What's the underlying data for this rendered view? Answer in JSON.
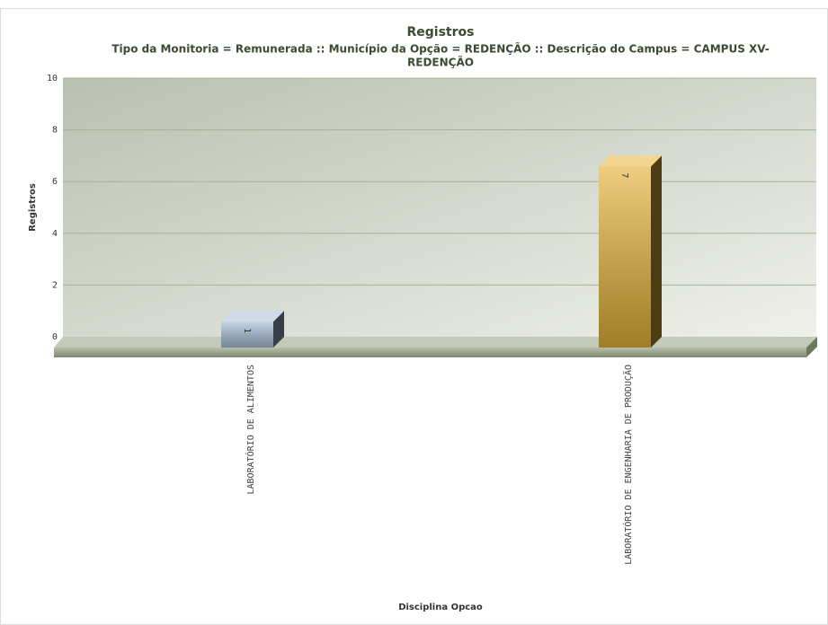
{
  "chart_data": {
    "type": "bar3d",
    "title": "Registros",
    "subtitle": [
      "Tipo da Monitoria = Remunerada :: Município da Opção = REDENÇÃO :: Descrição do Campus = CAMPUS XV-",
      "REDENÇÃO"
    ],
    "y_label": "Registros",
    "x_label": "Disciplina Opcao",
    "categories": [
      "LABORATÓRIO DE ALIMENTOS",
      "LABORATÓRIO DE ENGENHARIA DE PRODUÇÃO"
    ],
    "values": [
      1,
      7
    ],
    "colors": [
      "#a6bed9",
      "#e6b43a"
    ],
    "ylim": [
      0,
      10
    ],
    "yticks": [
      0,
      2,
      4,
      6,
      8,
      10
    ],
    "grid": true
  }
}
